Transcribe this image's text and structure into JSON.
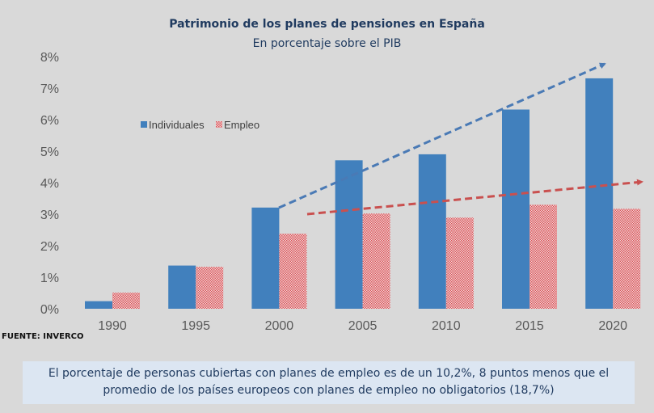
{
  "chart_data": {
    "type": "bar",
    "title": "Patrimonio de los planes de pensiones en España",
    "subtitle": "En porcentaje sobre el PIB",
    "categories": [
      "1990",
      "1995",
      "2000",
      "2005",
      "2010",
      "2015",
      "2020"
    ],
    "series": [
      {
        "name": "Individuales",
        "color": "#4180bd",
        "values": [
          0.24,
          1.37,
          3.21,
          4.71,
          4.9,
          6.32,
          7.31
        ]
      },
      {
        "name": "Empleo",
        "color": "#e8a0a0",
        "pattern": "dotted-red",
        "values": [
          0.51,
          1.33,
          2.38,
          3.02,
          2.89,
          3.3,
          3.17
        ]
      }
    ],
    "ylim": [
      0,
      8
    ],
    "yticks": [
      "0%",
      "1%",
      "2%",
      "3%",
      "4%",
      "5%",
      "6%",
      "7%",
      "8%"
    ],
    "legend": "upper-left",
    "grid": false,
    "trend_arrows": [
      {
        "series": "Individuales",
        "color": "#4a7ab5",
        "style": "dashed"
      },
      {
        "series": "Empleo",
        "color": "#c9504f",
        "style": "dashed"
      }
    ]
  },
  "source": "FUENTE: INVERCO",
  "note": "El porcentaje de personas cubiertas con planes de empleo es de un 10,2%, 8 puntos menos que el promedio de los países europeos con planes de empleo no obligatorios (18,7%)"
}
